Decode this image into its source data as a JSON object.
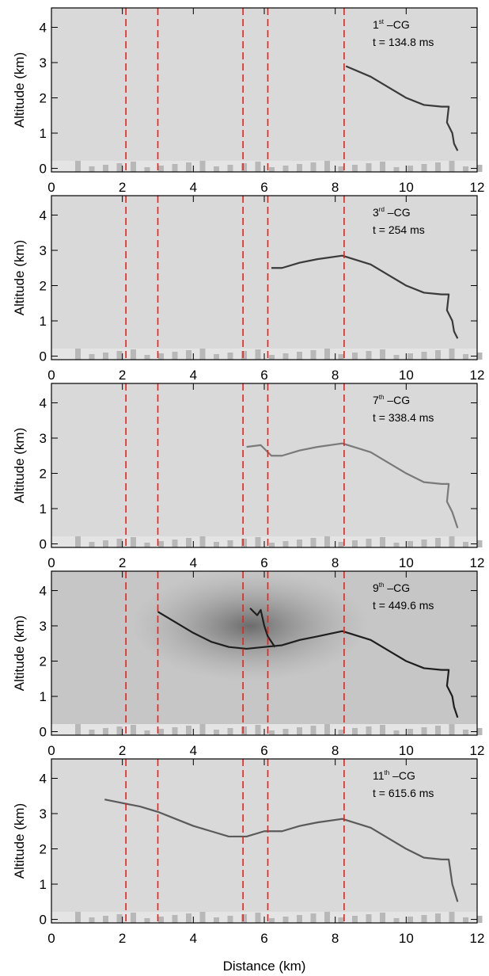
{
  "chart_data": [
    {
      "type": "line",
      "background": "#d9d9d9",
      "annotation": {
        "number": "1",
        "suffix": "st",
        "text": " –CG"
      },
      "time_label": "t = 134.8 ms",
      "ylabel": "Altitude (km)",
      "xlim": [
        0,
        12
      ],
      "ylim": [
        -0.1,
        4.55
      ],
      "xticks": [
        0,
        2,
        4,
        6,
        8,
        10,
        12
      ],
      "yticks": [
        0,
        1,
        2,
        3,
        4
      ],
      "vlines": [
        2.1,
        3.0,
        5.4,
        6.1,
        8.25
      ],
      "vline_color": "#e8201c",
      "series": [
        {
          "color": "#3a3a3a",
          "x": [
            8.3,
            9,
            9.5,
            10,
            10.5,
            11,
            11.2,
            11.15,
            11.3,
            11.35,
            11.45
          ],
          "values": [
            2.9,
            2.6,
            2.3,
            2.0,
            1.8,
            1.75,
            1.75,
            1.3,
            1.0,
            0.7,
            0.5
          ]
        }
      ]
    },
    {
      "type": "line",
      "background": "#d9d9d9",
      "annotation": {
        "number": "3",
        "suffix": "rd",
        "text": " –CG"
      },
      "time_label": "t = 254 ms",
      "ylabel": "Altitude (km)",
      "xlim": [
        0,
        12
      ],
      "ylim": [
        -0.1,
        4.55
      ],
      "xticks": [
        0,
        2,
        4,
        6,
        8,
        10,
        12
      ],
      "yticks": [
        0,
        1,
        2,
        3,
        4
      ],
      "vlines": [
        2.1,
        3.0,
        5.4,
        6.1,
        8.25
      ],
      "vline_color": "#e8201c",
      "series": [
        {
          "color": "#3a3a3a",
          "x": [
            6.2,
            6.5,
            7,
            7.5,
            8.2,
            9,
            9.5,
            10,
            10.5,
            11,
            11.2,
            11.15,
            11.3,
            11.35,
            11.45
          ],
          "values": [
            2.5,
            2.5,
            2.65,
            2.75,
            2.85,
            2.6,
            2.3,
            2.0,
            1.8,
            1.75,
            1.75,
            1.3,
            1.0,
            0.7,
            0.5
          ]
        }
      ]
    },
    {
      "type": "line",
      "background": "#d9d9d9",
      "annotation": {
        "number": "7",
        "suffix": "th",
        "text": " –CG"
      },
      "time_label": "t = 338.4 ms",
      "ylabel": "Altitude (km)",
      "xlim": [
        0,
        12
      ],
      "ylim": [
        -0.1,
        4.55
      ],
      "xticks": [
        0,
        2,
        4,
        6,
        8,
        10,
        12
      ],
      "yticks": [
        0,
        1,
        2,
        3,
        4
      ],
      "vlines": [
        2.1,
        3.0,
        5.4,
        6.1,
        8.25
      ],
      "vline_color": "#e8201c",
      "series": [
        {
          "color": "#7a7a7a",
          "x": [
            5.5,
            5.9,
            6.2,
            6.5,
            7,
            7.5,
            8.2,
            9,
            9.5,
            10,
            10.5,
            11,
            11.2,
            11.15,
            11.3,
            11.45
          ],
          "values": [
            2.75,
            2.8,
            2.5,
            2.5,
            2.65,
            2.75,
            2.85,
            2.6,
            2.3,
            2.0,
            1.75,
            1.7,
            1.7,
            1.2,
            0.9,
            0.45
          ]
        }
      ]
    },
    {
      "type": "line",
      "background": "#c6c6c6",
      "annotation": {
        "number": "9",
        "suffix": "th",
        "text": " –CG"
      },
      "time_label": "t = 449.6 ms",
      "ylabel": "Altitude (km)",
      "xlim": [
        0,
        12
      ],
      "ylim": [
        -0.1,
        4.55
      ],
      "xticks": [
        0,
        2,
        4,
        6,
        8,
        10,
        12
      ],
      "yticks": [
        0,
        1,
        2,
        3,
        4
      ],
      "vlines": [
        2.1,
        3.0,
        5.4,
        6.1,
        8.25
      ],
      "vline_color": "#e8201c",
      "series": [
        {
          "color": "#1e1e1e",
          "x": [
            3.0,
            3.5,
            4,
            4.5,
            5,
            5.5,
            6,
            6.5,
            7,
            7.5,
            8.2,
            9,
            9.5,
            10,
            10.5,
            11,
            11.2,
            11.15,
            11.3,
            11.35,
            11.45
          ],
          "values": [
            3.4,
            3.1,
            2.8,
            2.55,
            2.4,
            2.35,
            2.4,
            2.45,
            2.6,
            2.7,
            2.85,
            2.6,
            2.3,
            2.0,
            1.8,
            1.75,
            1.75,
            1.3,
            1.0,
            0.7,
            0.4
          ]
        },
        {
          "color": "#1e1e1e",
          "x": [
            5.6,
            5.8,
            5.9,
            6.0,
            6.1,
            6.3
          ],
          "values": [
            3.5,
            3.3,
            3.45,
            3.0,
            2.7,
            2.4
          ]
        }
      ]
    },
    {
      "type": "line",
      "background": "#d9d9d9",
      "annotation": {
        "number": "11",
        "suffix": "th",
        "text": " –CG"
      },
      "time_label": "t = 615.6 ms",
      "ylabel": "Altitude (km)",
      "xlabel": "Distance (km)",
      "xlim": [
        0,
        12
      ],
      "ylim": [
        -0.1,
        4.55
      ],
      "xticks": [
        0,
        2,
        4,
        6,
        8,
        10,
        12
      ],
      "yticks": [
        0,
        1,
        2,
        3,
        4
      ],
      "vlines": [
        2.1,
        3.0,
        5.4,
        6.1,
        8.25
      ],
      "vline_color": "#e8201c",
      "series": [
        {
          "color": "#5a5a5a",
          "x": [
            1.5,
            2,
            2.5,
            3,
            3.5,
            4,
            4.5,
            5,
            5.5,
            6,
            6.5,
            7,
            7.5,
            8.2,
            9,
            9.5,
            10,
            10.5,
            11,
            11.2,
            11.3,
            11.45
          ],
          "values": [
            3.4,
            3.3,
            3.2,
            3.05,
            2.85,
            2.65,
            2.5,
            2.35,
            2.35,
            2.5,
            2.5,
            2.65,
            2.75,
            2.85,
            2.6,
            2.3,
            2.0,
            1.75,
            1.7,
            1.7,
            1.0,
            0.5
          ]
        }
      ]
    }
  ]
}
